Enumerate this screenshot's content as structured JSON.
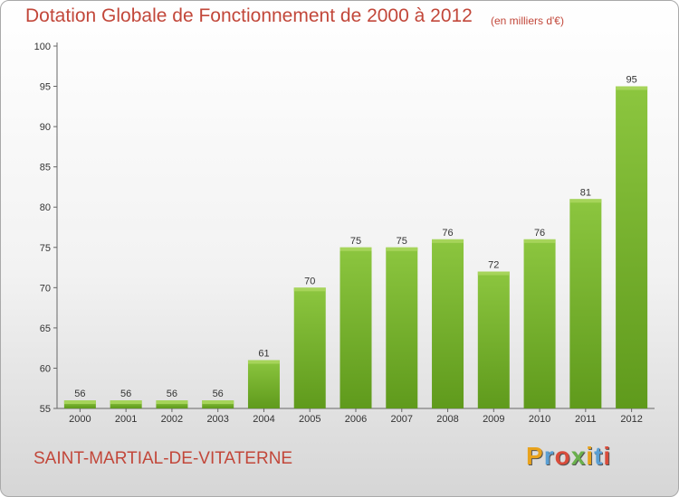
{
  "chart_data": {
    "type": "bar",
    "title": "Dotation Globale de Fonctionnement de 2000 à 2012",
    "subtitle": "(en milliers d'€)",
    "categories": [
      "2000",
      "2001",
      "2002",
      "2003",
      "2004",
      "2005",
      "2006",
      "2007",
      "2008",
      "2009",
      "2010",
      "2011",
      "2012"
    ],
    "values": [
      56,
      56,
      56,
      56,
      61,
      70,
      75,
      75,
      76,
      72,
      76,
      81,
      95
    ],
    "data_labels": [
      "56",
      "56",
      "56",
      "56",
      "61",
      "70",
      "75",
      "75",
      "76",
      "72",
      "76",
      "81",
      "95"
    ],
    "ylim": [
      55,
      100
    ],
    "yticks": [
      55,
      60,
      65,
      70,
      75,
      80,
      85,
      90,
      95,
      100
    ],
    "ytick_labels": [
      "55",
      "60",
      "65",
      "70",
      "75",
      "80",
      "85",
      "90",
      "95",
      "100"
    ],
    "xlabel": "",
    "ylabel": "",
    "grid": false,
    "bar_color": "#7cb82f"
  },
  "footer": {
    "town": "SAINT-MARTIAL-DE-VITATERNE",
    "logo": "Proxiti",
    "logo_colors": [
      "#e8a21c",
      "#5a9fd4",
      "#d94c3b",
      "#6ab04c",
      "#e8a21c",
      "#5a9fd4",
      "#d94c3b"
    ]
  },
  "colors": {
    "title": "#c2473a",
    "axis": "#666666"
  }
}
